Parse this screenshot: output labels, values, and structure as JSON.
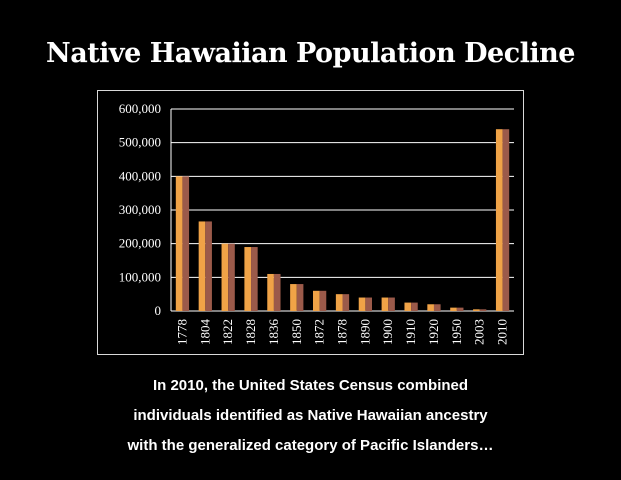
{
  "slide": {
    "title": "Native Hawaiian Population Decline",
    "caption_lines": [
      "In 2010, the United States Census combined",
      "individuals identified as Native Hawaiian ancestry",
      "with the generalized category of Pacific Islanders…"
    ]
  },
  "colors": {
    "background": "#000000",
    "bar_front": "#f0a347",
    "bar_shade": "#9b5a4a",
    "grid": "#ffffff",
    "text": "#ffffff"
  },
  "chart_data": {
    "type": "bar",
    "title": "",
    "xlabel": "",
    "ylabel": "",
    "ylim": [
      0,
      600000
    ],
    "yticks": [
      0,
      100000,
      200000,
      300000,
      400000,
      500000,
      600000
    ],
    "ytick_labels": [
      "0",
      "100,000",
      "200,000",
      "300,000",
      "400,000",
      "500,000",
      "600,000"
    ],
    "grid": true,
    "legend": "none",
    "categories": [
      "1778",
      "1804",
      "1822",
      "1828",
      "1836",
      "1850",
      "1872",
      "1878",
      "1890",
      "1900",
      "1910",
      "1920",
      "1950",
      "2003",
      "2010"
    ],
    "values": [
      400000,
      266000,
      200000,
      190000,
      110000,
      80000,
      60000,
      50000,
      40000,
      40000,
      25000,
      20000,
      10000,
      5000,
      540000
    ]
  }
}
